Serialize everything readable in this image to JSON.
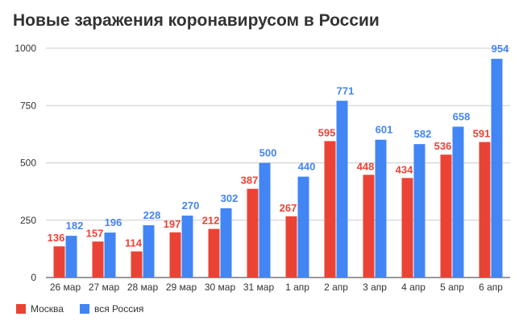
{
  "chart_data": {
    "type": "bar",
    "title": "Новые заражения коронавирусом в России",
    "xlabel": "",
    "ylabel": "",
    "categories": [
      "26 мар",
      "27 мар",
      "28 мар",
      "29 мар",
      "30 мар",
      "31 мар",
      "1 апр",
      "2 апр",
      "3 апр",
      "4 апр",
      "5 апр",
      "6 апр"
    ],
    "series": [
      {
        "name": "Москва",
        "color": "#ea4335",
        "values": [
          136,
          157,
          114,
          197,
          212,
          387,
          267,
          595,
          448,
          434,
          536,
          591
        ]
      },
      {
        "name": "вся Россия",
        "color": "#4285f4",
        "values": [
          182,
          196,
          228,
          270,
          302,
          500,
          440,
          771,
          601,
          582,
          658,
          954
        ]
      }
    ],
    "ylim": [
      0,
      1000
    ],
    "yticks": [
      0,
      250,
      500,
      750,
      1000
    ],
    "grid": true,
    "legend": "bottom-left",
    "data_labels": true
  }
}
